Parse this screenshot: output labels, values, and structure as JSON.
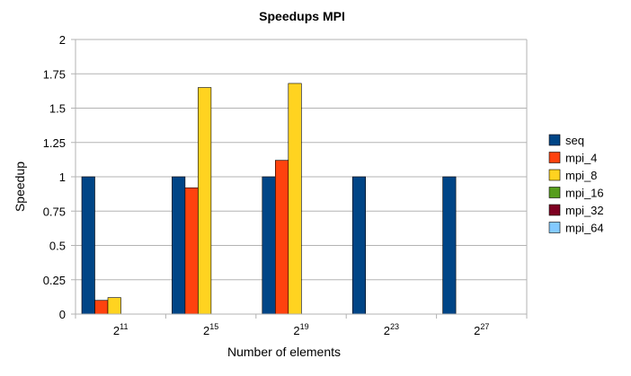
{
  "chart_data": {
    "type": "bar",
    "title": "Speedups MPI",
    "xlabel": "Number of elements",
    "ylabel": "Speedup",
    "ylim": [
      0,
      2
    ],
    "yticks": [
      "0",
      "0.25",
      "0.5",
      "0.75",
      "1",
      "1.25",
      "1.5",
      "1.75",
      "2"
    ],
    "categories": [
      {
        "base": "2",
        "exp": "11"
      },
      {
        "base": "2",
        "exp": "15"
      },
      {
        "base": "2",
        "exp": "19"
      },
      {
        "base": "2",
        "exp": "23"
      },
      {
        "base": "2",
        "exp": "27"
      }
    ],
    "series": [
      {
        "name": "seq",
        "color": "#004586",
        "values": [
          1,
          1,
          1,
          1,
          1
        ]
      },
      {
        "name": "mpi_4",
        "color": "#ff420e",
        "values": [
          0.1,
          0.92,
          1.12,
          null,
          null
        ]
      },
      {
        "name": "mpi_8",
        "color": "#ffd320",
        "values": [
          0.12,
          1.65,
          1.68,
          null,
          null
        ]
      },
      {
        "name": "mpi_16",
        "color": "#579d1c",
        "values": [
          null,
          null,
          null,
          null,
          null
        ]
      },
      {
        "name": "mpi_32",
        "color": "#7e0021",
        "values": [
          null,
          null,
          null,
          null,
          null
        ]
      },
      {
        "name": "mpi_64",
        "color": "#83caff",
        "values": [
          null,
          null,
          null,
          null,
          null
        ]
      }
    ],
    "grid": true,
    "legend": "right"
  }
}
